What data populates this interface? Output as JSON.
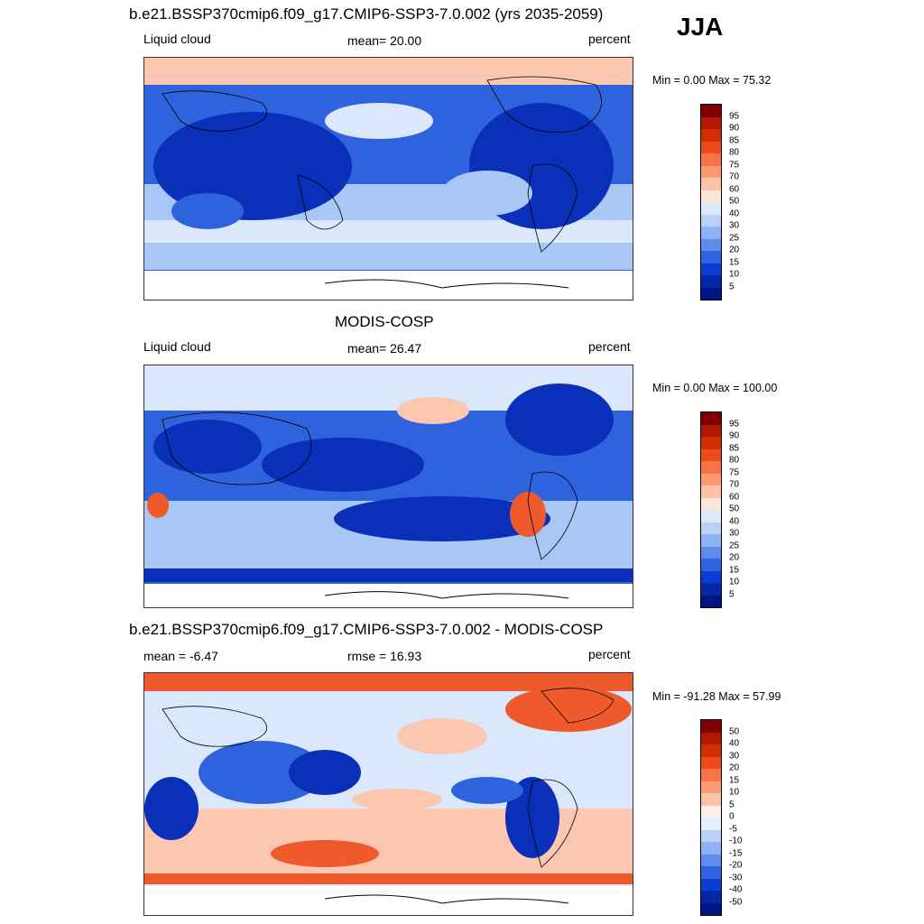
{
  "header": {
    "title": "b.e21.BSSP370cmip6.f09_g17.CMIP6-SSP3-7.0.002 (yrs 2035-2059)",
    "season": "JJA"
  },
  "panels": [
    {
      "title": "",
      "left_label": "Liquid cloud",
      "center_label": "mean=  20.00",
      "right_label": "percent",
      "minmax": "Min =    0.00 Max =  75.32",
      "colorbar": {
        "ticks": [
          "95",
          "90",
          "85",
          "80",
          "75",
          "70",
          "60",
          "50",
          "40",
          "30",
          "25",
          "20",
          "15",
          "10",
          "5"
        ],
        "colors": [
          "#7f0000",
          "#b21800",
          "#d42e00",
          "#ee4a1a",
          "#f77446",
          "#fb9a73",
          "#fdc3a6",
          "#fde7d8",
          "#dde9fb",
          "#b9d2f8",
          "#8fb3f2",
          "#5f8ceb",
          "#3064e2",
          "#0a3ed3",
          "#0527a8",
          "#001585"
        ]
      }
    },
    {
      "title": "MODIS-COSP",
      "left_label": "Liquid cloud",
      "center_label": "mean=  26.47",
      "right_label": "percent",
      "minmax": "Min =    0.00 Max = 100.00",
      "colorbar": {
        "ticks": [
          "95",
          "90",
          "85",
          "80",
          "75",
          "70",
          "60",
          "50",
          "40",
          "30",
          "25",
          "20",
          "15",
          "10",
          "5"
        ],
        "colors": [
          "#7f0000",
          "#b21800",
          "#d42e00",
          "#ee4a1a",
          "#f77446",
          "#fb9a73",
          "#fdc3a6",
          "#fde7d8",
          "#dde9fb",
          "#b9d2f8",
          "#8fb3f2",
          "#5f8ceb",
          "#3064e2",
          "#0a3ed3",
          "#0527a8",
          "#001585"
        ]
      }
    },
    {
      "title": "b.e21.BSSP370cmip6.f09_g17.CMIP6-SSP3-7.0.002 - MODIS-COSP",
      "left_label": "mean =  -6.47",
      "center_label": "rmse =  16.93",
      "right_label": "percent",
      "minmax": "Min = -91.28 Max =  57.99",
      "colorbar": {
        "ticks": [
          "50",
          "40",
          "30",
          "20",
          "15",
          "10",
          "5",
          "0",
          "-5",
          "-10",
          "-15",
          "-20",
          "-30",
          "-40",
          "-50"
        ],
        "colors": [
          "#7f0000",
          "#b21800",
          "#d42e00",
          "#ee4a1a",
          "#f77446",
          "#fb9a73",
          "#fdc3a6",
          "#fdf0e6",
          "#e4eefc",
          "#b9d2f8",
          "#8fb3f2",
          "#5f8ceb",
          "#3064e2",
          "#0a3ed3",
          "#0527a8",
          "#001585"
        ]
      }
    }
  ],
  "map_colors": {
    "very_low": "#0a2fb8",
    "low": "#2f63de",
    "mid_low": "#a9c7f4",
    "neutral": "#dbe8fb",
    "mid_high": "#fbc7b0",
    "high": "#ee5a2c",
    "antarctica": "#ffffff"
  }
}
